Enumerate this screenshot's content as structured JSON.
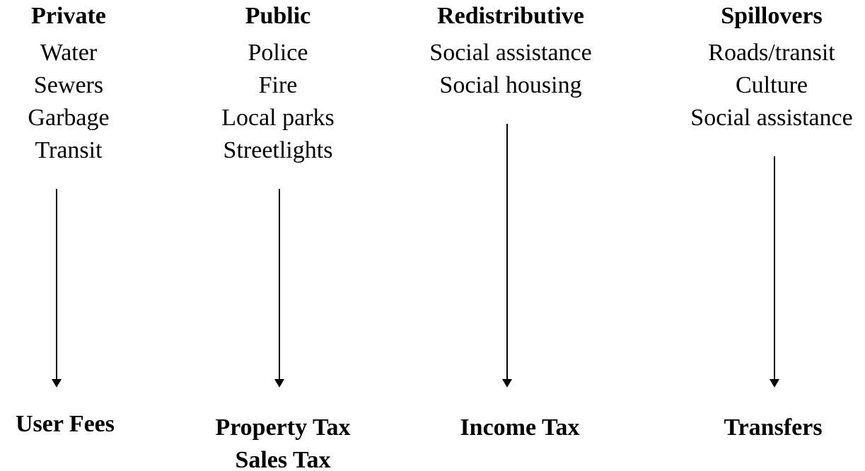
{
  "columns": [
    {
      "heading": "Private",
      "items": [
        "Water",
        "Sewers",
        "Garbage",
        "Transit"
      ],
      "funding": [
        "User Fees"
      ]
    },
    {
      "heading": "Public",
      "items": [
        "Police",
        "Fire",
        "Local parks",
        "Streetlights"
      ],
      "funding": [
        "Property Tax",
        "Sales Tax"
      ]
    },
    {
      "heading": "Redistributive",
      "items": [
        "Social assistance",
        "Social housing"
      ],
      "funding": [
        "Income Tax"
      ]
    },
    {
      "heading": "Spillovers",
      "items": [
        "Roads/transit",
        "Culture",
        "Social assistance"
      ],
      "funding": [
        "Transfers"
      ]
    }
  ]
}
